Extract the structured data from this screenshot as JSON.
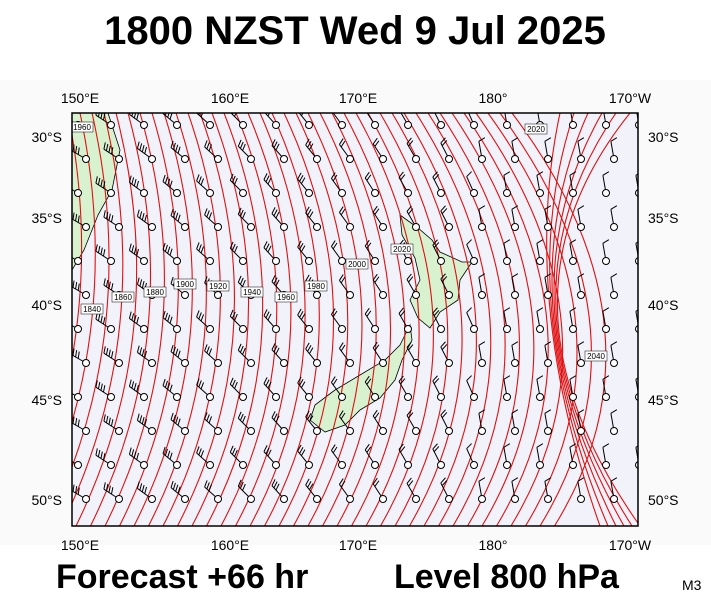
{
  "header": {
    "title": "1800 NZST Wed 9 Jul 2025"
  },
  "map": {
    "lon_labels": [
      "150°E",
      "160°E",
      "170°E",
      "180°",
      "170°W"
    ],
    "lat_labels": [
      "30°S",
      "35°S",
      "40°S",
      "45°S",
      "50°S"
    ],
    "contour_labels": [
      "1960",
      "1840",
      "1860",
      "1880",
      "1900",
      "1920",
      "1940",
      "1960",
      "1980",
      "2000",
      "2020",
      "2020",
      "2040"
    ]
  },
  "footer": {
    "forecast": "Forecast +66 hr",
    "level": "Level 800 hPa",
    "code": "M3"
  }
}
